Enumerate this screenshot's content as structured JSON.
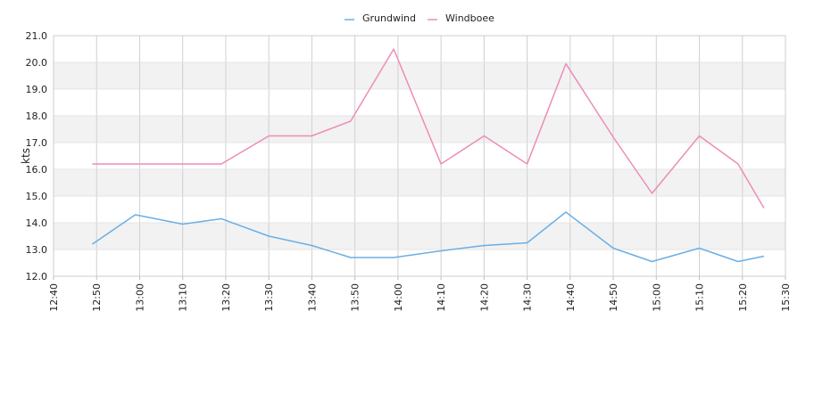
{
  "chart_data": {
    "type": "line",
    "title": "",
    "xlabel": "",
    "ylabel": "kts",
    "x_ticks": [
      "12:40",
      "12:50",
      "13:00",
      "13:10",
      "13:20",
      "13:30",
      "13:40",
      "13:50",
      "14:00",
      "14:10",
      "14:20",
      "14:30",
      "14:40",
      "14:50",
      "15:00",
      "15:10",
      "15:20",
      "15:30"
    ],
    "x_range": [
      "12:40",
      "15:30"
    ],
    "ylim": [
      12.0,
      21.0
    ],
    "y_ticks": [
      "12.0",
      "13.0",
      "14.0",
      "15.0",
      "16.0",
      "17.0",
      "18.0",
      "19.0",
      "20.0",
      "21.0"
    ],
    "grid": true,
    "legend_position": "top-center",
    "x": [
      "12:49",
      "12:59",
      "13:10",
      "13:19",
      "13:30",
      "13:40",
      "13:49",
      "13:59",
      "14:10",
      "14:20",
      "14:30",
      "14:39",
      "14:50",
      "14:59",
      "15:10",
      "15:19",
      "15:25"
    ],
    "series": [
      {
        "name": "Grundwind",
        "color": "#6aafe6",
        "values": [
          13.2,
          14.3,
          13.95,
          14.15,
          13.5,
          13.15,
          12.7,
          12.7,
          12.95,
          13.15,
          13.25,
          14.4,
          13.05,
          12.55,
          13.05,
          12.55,
          12.75
        ]
      },
      {
        "name": "Windboee",
        "color": "#ee8cb8",
        "values": [
          16.2,
          16.2,
          16.2,
          16.2,
          17.25,
          17.25,
          17.8,
          20.5,
          16.2,
          17.25,
          16.2,
          19.95,
          17.2,
          15.1,
          17.25,
          16.2,
          14.55
        ]
      }
    ]
  }
}
